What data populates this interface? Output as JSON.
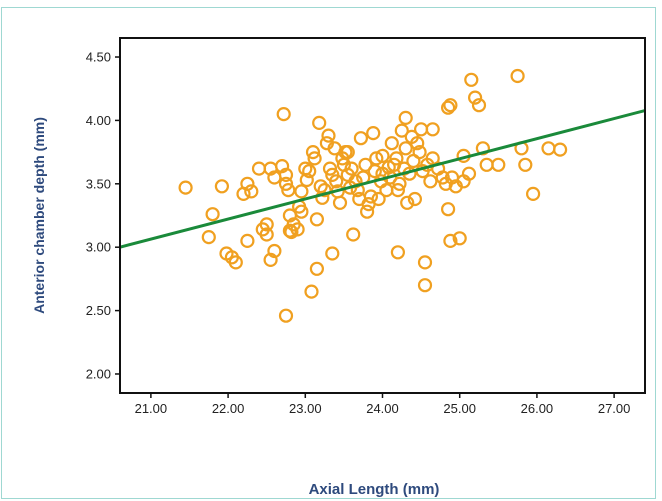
{
  "chart_data": {
    "type": "scatter",
    "xlabel": "Axial Length (mm)",
    "ylabel": "Anterior chamber depth (mm)",
    "xlim": [
      20.6,
      27.4
    ],
    "ylim": [
      1.85,
      4.65
    ],
    "x_ticks": [
      "21.00",
      "22.00",
      "23.00",
      "24.00",
      "25.00",
      "26.00",
      "27.00"
    ],
    "y_ticks": [
      "2.00",
      "2.50",
      "3.00",
      "3.50",
      "4.00",
      "4.50"
    ],
    "grid": false,
    "colors": {
      "points": "#f0a020",
      "fit_line": "#1a8a3a",
      "axis_label": "#2e4a7d"
    },
    "fit_line": {
      "intercept": -0.265,
      "slope": 0.1585
    },
    "points": [
      [
        21.45,
        3.47
      ],
      [
        21.75,
        3.08
      ],
      [
        21.8,
        3.26
      ],
      [
        21.92,
        3.48
      ],
      [
        21.98,
        2.95
      ],
      [
        22.05,
        2.92
      ],
      [
        22.1,
        2.88
      ],
      [
        22.2,
        3.42
      ],
      [
        22.25,
        3.05
      ],
      [
        22.25,
        3.5
      ],
      [
        22.3,
        3.44
      ],
      [
        22.4,
        3.62
      ],
      [
        22.45,
        3.14
      ],
      [
        22.5,
        3.18
      ],
      [
        22.5,
        3.1
      ],
      [
        22.55,
        3.62
      ],
      [
        22.55,
        2.9
      ],
      [
        22.6,
        3.55
      ],
      [
        22.6,
        2.97
      ],
      [
        22.7,
        3.64
      ],
      [
        22.75,
        3.57
      ],
      [
        22.75,
        3.5
      ],
      [
        22.78,
        3.45
      ],
      [
        22.8,
        3.25
      ],
      [
        22.8,
        3.13
      ],
      [
        22.82,
        3.12
      ],
      [
        22.85,
        3.18
      ],
      [
        22.9,
        3.14
      ],
      [
        22.92,
        3.32
      ],
      [
        22.95,
        3.28
      ],
      [
        22.95,
        3.44
      ],
      [
        23.0,
        3.62
      ],
      [
        23.02,
        3.53
      ],
      [
        23.05,
        3.6
      ],
      [
        23.1,
        3.75
      ],
      [
        23.12,
        3.7
      ],
      [
        23.15,
        3.22
      ],
      [
        23.15,
        2.83
      ],
      [
        23.18,
        3.98
      ],
      [
        23.2,
        3.48
      ],
      [
        23.22,
        3.39
      ],
      [
        23.25,
        3.45
      ],
      [
        23.28,
        3.82
      ],
      [
        23.3,
        3.88
      ],
      [
        23.32,
        3.62
      ],
      [
        23.35,
        3.57
      ],
      [
        23.38,
        3.78
      ],
      [
        23.4,
        3.52
      ],
      [
        23.42,
        3.44
      ],
      [
        23.45,
        3.35
      ],
      [
        23.48,
        3.7
      ],
      [
        23.5,
        3.65
      ],
      [
        23.52,
        3.75
      ],
      [
        23.55,
        3.57
      ],
      [
        23.58,
        3.47
      ],
      [
        23.6,
        3.62
      ],
      [
        23.62,
        3.1
      ],
      [
        23.65,
        3.52
      ],
      [
        23.68,
        3.45
      ],
      [
        23.7,
        3.38
      ],
      [
        23.72,
        3.86
      ],
      [
        23.75,
        3.55
      ],
      [
        23.78,
        3.65
      ],
      [
        23.8,
        3.28
      ],
      [
        23.82,
        3.34
      ],
      [
        23.85,
        3.4
      ],
      [
        23.88,
        3.9
      ],
      [
        23.9,
        3.6
      ],
      [
        23.92,
        3.7
      ],
      [
        23.95,
        3.38
      ],
      [
        23.98,
        3.52
      ],
      [
        24.0,
        3.72
      ],
      [
        24.05,
        3.45
      ],
      [
        24.08,
        3.63
      ],
      [
        24.1,
        3.55
      ],
      [
        24.12,
        3.82
      ],
      [
        24.15,
        3.65
      ],
      [
        24.18,
        3.7
      ],
      [
        24.2,
        2.96
      ],
      [
        24.22,
        3.5
      ],
      [
        24.25,
        3.92
      ],
      [
        24.28,
        3.62
      ],
      [
        24.3,
        3.78
      ],
      [
        24.32,
        3.35
      ],
      [
        24.35,
        3.58
      ],
      [
        24.38,
        3.87
      ],
      [
        24.4,
        3.68
      ],
      [
        24.42,
        3.38
      ],
      [
        24.45,
        3.82
      ],
      [
        24.48,
        3.75
      ],
      [
        24.5,
        3.93
      ],
      [
        24.52,
        3.6
      ],
      [
        24.55,
        2.7
      ],
      [
        24.55,
        2.88
      ],
      [
        24.58,
        3.65
      ],
      [
        24.62,
        3.52
      ],
      [
        24.65,
        3.7
      ],
      [
        24.72,
        3.62
      ],
      [
        24.78,
        3.55
      ],
      [
        24.82,
        3.5
      ],
      [
        24.85,
        3.3
      ],
      [
        24.88,
        3.05
      ],
      [
        24.9,
        3.55
      ],
      [
        24.95,
        3.48
      ],
      [
        25.0,
        3.07
      ],
      [
        25.05,
        3.52
      ],
      [
        25.12,
        3.58
      ],
      [
        25.15,
        4.32
      ],
      [
        25.2,
        4.18
      ],
      [
        25.25,
        4.12
      ],
      [
        25.3,
        3.78
      ],
      [
        25.35,
        3.65
      ],
      [
        25.5,
        3.65
      ],
      [
        25.75,
        4.35
      ],
      [
        25.8,
        3.78
      ],
      [
        25.85,
        3.65
      ],
      [
        25.95,
        3.42
      ],
      [
        26.15,
        3.78
      ],
      [
        26.3,
        3.77
      ],
      [
        22.72,
        4.05
      ],
      [
        22.75,
        2.46
      ],
      [
        23.08,
        2.65
      ],
      [
        23.35,
        2.95
      ],
      [
        24.3,
        4.02
      ],
      [
        24.65,
        3.93
      ],
      [
        24.85,
        4.1
      ],
      [
        24.88,
        4.12
      ],
      [
        25.05,
        3.72
      ],
      [
        24.2,
        3.45
      ],
      [
        23.55,
        3.75
      ],
      [
        24.0,
        3.58
      ]
    ]
  }
}
